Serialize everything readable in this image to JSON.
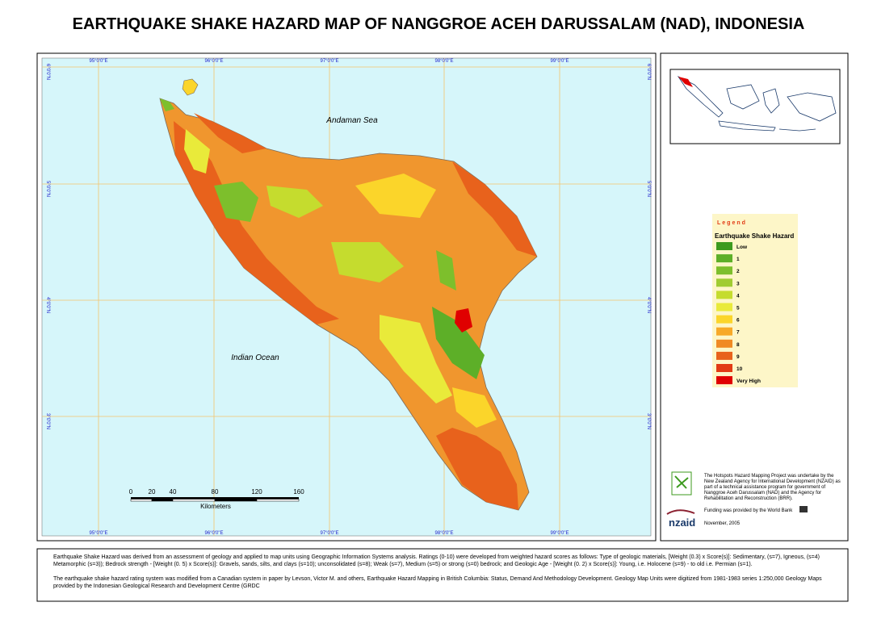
{
  "title": "EARTHQUAKE SHAKE HAZARD MAP OF NANGGROE ACEH DARUSSALAM (NAD), INDONESIA",
  "map": {
    "sea_labels": [
      "Andaman Sea",
      "Indian Ocean"
    ],
    "longitudes": [
      "95°0'0\"E",
      "96°0'0\"E",
      "97°0'0\"E",
      "98°0'0\"E",
      "99°0'0\"E"
    ],
    "latitudes": [
      "6°0'0\"N",
      "5°0'0\"N",
      "4°0'0\"N",
      "3°0'0\"N"
    ]
  },
  "scale_bar": {
    "ticks": [
      0,
      20,
      40,
      80,
      120,
      160
    ],
    "unit": "Kilometers"
  },
  "legend": {
    "heading": "Legend",
    "title": "Earthquake Shake Hazard",
    "items": [
      {
        "label": "Low",
        "color": "#3c9a1e"
      },
      {
        "label": "1",
        "color": "#5daf28"
      },
      {
        "label": "2",
        "color": "#7dbf2c"
      },
      {
        "label": "3",
        "color": "#a0cc32"
      },
      {
        "label": "4",
        "color": "#c5dc2e"
      },
      {
        "label": "5",
        "color": "#e9ea3a"
      },
      {
        "label": "6",
        "color": "#fbd52a"
      },
      {
        "label": "7",
        "color": "#f7a928"
      },
      {
        "label": "8",
        "color": "#f08a24"
      },
      {
        "label": "9",
        "color": "#e8621c"
      },
      {
        "label": "10",
        "color": "#e23a14"
      },
      {
        "label": "Very High",
        "color": "#e00000"
      }
    ]
  },
  "credits": {
    "project": "The Hotspots Hazard Mapping Project was undertake by the New Zealand Agency for International Development (NZAID) as part of a technical assistance program for government of Nanggroe Aceh Darussalam (NAD) and the Agency for Rehabilitation and Reconstruction (BRR).",
    "funding": "Funding was provided by the World Bank",
    "logo": "nzaid",
    "date": "November, 2005"
  },
  "description": [
    "Earthquake Shake Hazard was derived from an assessment of geology and applied to map units using Geographic Information Systems analysis.  Ratings (0-10) were developed from weighted hazard scores as follows: Type of geologic materials,  [Weight (0.3) x  Score(s)]: Sedimentary, (s=7), Igneous, (s=4) Metamorphic (s=3));  Bedrock strength - [Weight (0. 5) x  Score(s)]: Gravels, sands, silts, and clays (s=10); unconsolidated (s=8); Weak (s=7), Medium (s=5) or strong (s=0) bedrock; and Geologic Age - [Weight (0. 2) x  Score(s)]: Young, i.e. Holocene (s=9) - to old i.e. Permian (s=1).",
    "The earthquake shake hazard rating system was modified from a Canadian system in paper by Levson, Victor M. and others, Earthquake Hazard Mapping in British Columbia: Status, Demand And Methodology Development. Geology Map Units were digitized from 1981-1983 series 1:250,000 Geology Maps provided by the Indonesian Geological Research and Development Centre (GRDC"
  ]
}
